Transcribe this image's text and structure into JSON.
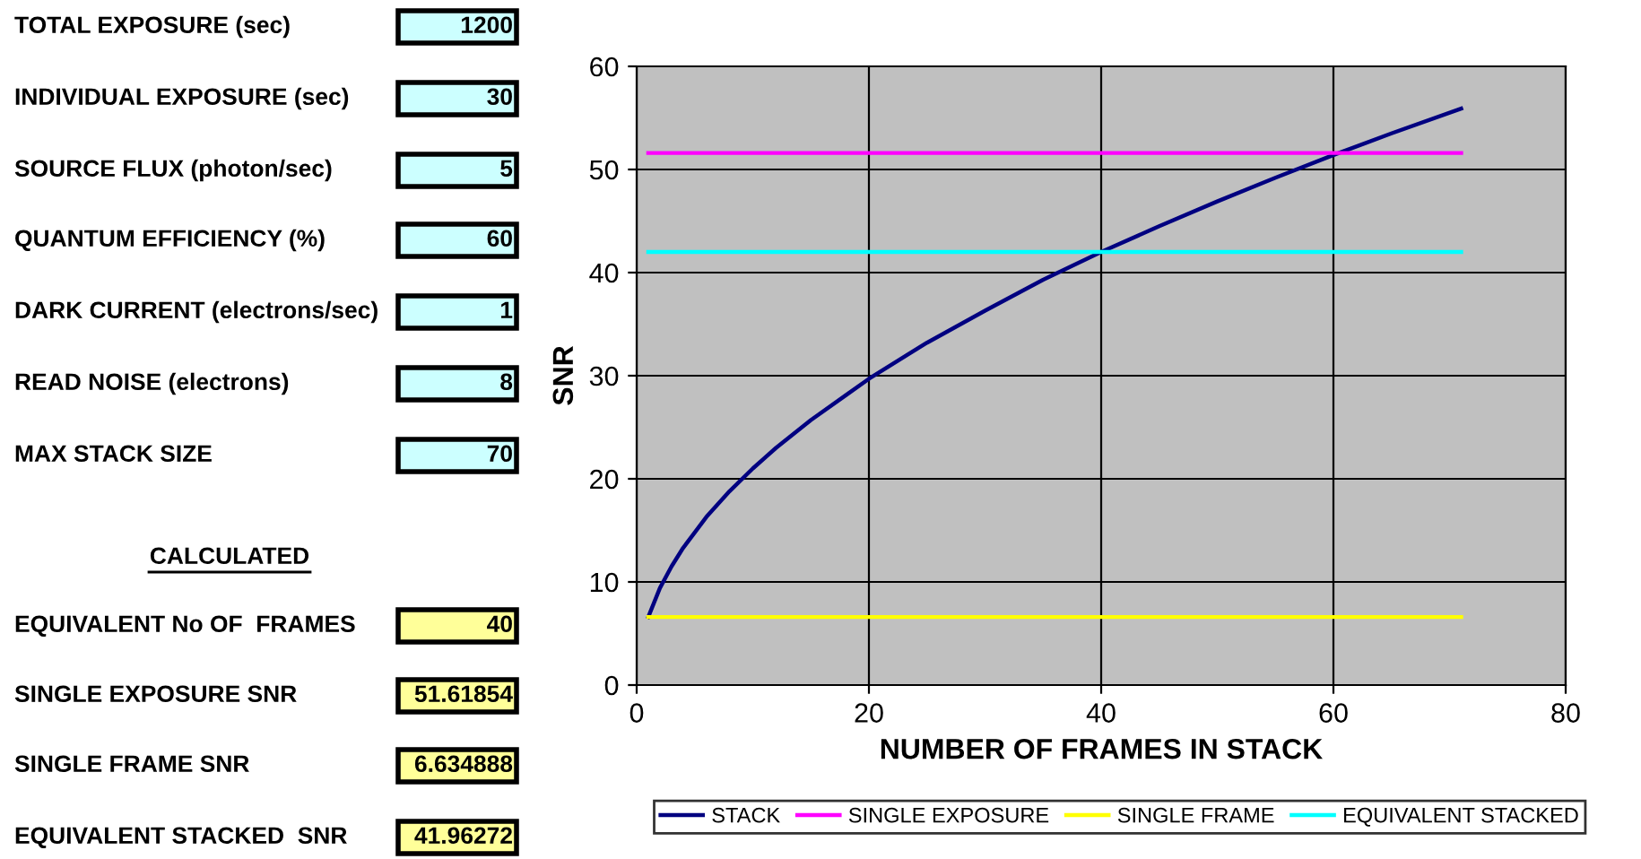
{
  "chart_data": [
    {
      "type": "other",
      "annotations": [
        "TOTAL EXPOSURE (sec)",
        "1200",
        "INDIVIDUAL EXPOSURE (sec)",
        "30",
        "SOURCE FLUX (photon/sec)",
        "5",
        "QUANTUM EFFICIENCY (%)",
        "60",
        "DARK CURRENT (electrons/sec)",
        "1",
        "READ NOISE (electrons)",
        "8",
        "MAX STACK SIZE",
        "70",
        "CALCULATED",
        "EQUIVALENT No OF  FRAMES",
        "40",
        "SINGLE EXPOSURE SNR",
        "51.61854",
        "SINGLE FRAME SNR",
        "6.634888",
        "EQUIVALENT STACKED  SNR",
        "41.96272"
      ]
    },
    {
      "type": "line",
      "xlabel": "NUMBER OF FRAMES IN STACK",
      "ylabel": "SNR",
      "xlim": [
        0,
        80
      ],
      "xticks": [
        0,
        20,
        40,
        60,
        80
      ],
      "ylim": [
        0,
        60
      ],
      "yticks": [
        0,
        10,
        20,
        30,
        40,
        50,
        60
      ],
      "grid": true,
      "legend": "bottom",
      "marker": "none",
      "line_style": "solid",
      "series": [
        {
          "name": "STACK",
          "color": "#000080",
          "x": [
            1,
            2,
            3,
            4,
            5,
            6,
            8,
            10,
            12,
            15,
            18,
            20,
            25,
            30,
            35,
            40,
            45,
            50,
            55,
            60,
            65,
            71
          ],
          "values": [
            6.6,
            9.4,
            11.5,
            13.3,
            14.8,
            16.3,
            18.8,
            21.0,
            23.0,
            25.7,
            28.1,
            29.7,
            33.2,
            36.3,
            39.3,
            42.0,
            44.5,
            46.9,
            49.2,
            51.4,
            53.5,
            55.9
          ]
        },
        {
          "name": "SINGLE EXPOSURE",
          "color": "#ff00ff",
          "x": [
            1,
            71
          ],
          "values": [
            51.6,
            51.6
          ]
        },
        {
          "name": "SINGLE FRAME",
          "color": "#ffff00",
          "x": [
            1,
            71
          ],
          "values": [
            6.6,
            6.6
          ]
        },
        {
          "name": "EQUIVALENT STACKED",
          "color": "#00ffff",
          "x": [
            1,
            71
          ],
          "values": [
            42.0,
            42.0
          ]
        }
      ]
    }
  ]
}
